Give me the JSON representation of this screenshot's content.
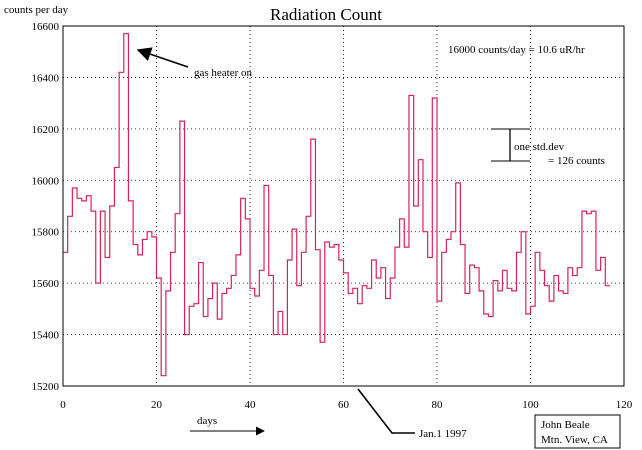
{
  "chart_data": {
    "type": "line",
    "title": "Radiation Count",
    "ylabel": "counts per day",
    "xlabel": "days",
    "xlim": [
      0,
      120
    ],
    "ylim": [
      15200,
      16600
    ],
    "x_ticks": [
      0,
      20,
      40,
      60,
      80,
      100,
      120
    ],
    "y_ticks": [
      15200,
      15400,
      15600,
      15800,
      16000,
      16200,
      16400,
      16600
    ],
    "grid": true,
    "step": true,
    "series": [
      {
        "color": "#d6245a",
        "values": [
          15720,
          15860,
          15970,
          15930,
          15920,
          15940,
          15880,
          15600,
          15880,
          15700,
          15900,
          16050,
          16420,
          16570,
          15920,
          15750,
          15710,
          15770,
          15800,
          15780,
          15620,
          15240,
          15570,
          15720,
          15870,
          16230,
          15400,
          15510,
          15520,
          15680,
          15470,
          15540,
          15600,
          15460,
          15560,
          15580,
          15630,
          15710,
          15930,
          15850,
          15580,
          15550,
          15650,
          15980,
          15630,
          15400,
          15490,
          15400,
          15690,
          15810,
          15590,
          15720,
          15860,
          16160,
          15730,
          15370,
          15760,
          15740,
          15750,
          15690,
          15640,
          15560,
          15580,
          15520,
          15590,
          15580,
          15690,
          15620,
          15660,
          15540,
          15620,
          15740,
          15850,
          15740,
          16330,
          15900,
          16080,
          15800,
          15700,
          16320,
          15530,
          15720,
          15770,
          15800,
          15990,
          15750,
          15560,
          15670,
          15660,
          15570,
          15480,
          15470,
          15610,
          15570,
          15650,
          15580,
          15570,
          15720,
          15800,
          15480,
          15510,
          15720,
          15650,
          15590,
          15530,
          15630,
          15570,
          15560,
          15660,
          15630,
          15660,
          15880,
          15870,
          15880,
          15650,
          15700,
          15590
        ]
      }
    ],
    "annotations": {
      "heater": "gas heater on",
      "conversion": "16000 counts/day = 10.6 uR/hr",
      "std_line1": "one std.dev",
      "std_line2": "= 126 counts",
      "date_marker": "Jan.1 1997",
      "credit_line1": "John Beale",
      "credit_line2": "Mtn. View, CA"
    }
  }
}
